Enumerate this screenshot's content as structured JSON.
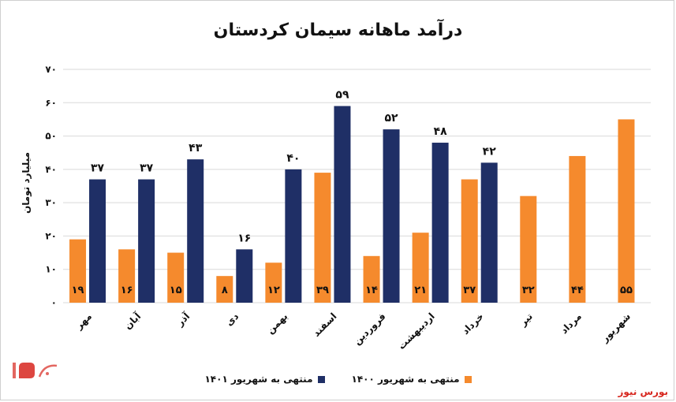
{
  "chart_data": {
    "type": "bar",
    "title": "درآمد ماهانه سیمان کردستان",
    "ylabel": "میلیارد تومان",
    "ylim": [
      0,
      70
    ],
    "yticks": [
      "۰",
      "۱۰",
      "۲۰",
      "۳۰",
      "۴۰",
      "۵۰",
      "۶۰",
      "۷۰"
    ],
    "categories": [
      "مهر",
      "آبان",
      "آذر",
      "دی",
      "بهمن",
      "اسفند",
      "فروردین",
      "اردیبهشت",
      "خرداد",
      "تیر",
      "مرداد",
      "شهریور"
    ],
    "series": [
      {
        "name": "منتهی به شهریور ۱۴۰۰",
        "color": "#f58a2d",
        "values": [
          19,
          16,
          15,
          8,
          12,
          39,
          14,
          21,
          37,
          32,
          44,
          55
        ],
        "labels": [
          "۱۹",
          "۱۶",
          "۱۵",
          "۸",
          "۱۲",
          "۳۹",
          "۱۴",
          "۲۱",
          "۳۷",
          "۳۲",
          "۴۴",
          "۵۵"
        ]
      },
      {
        "name": "منتهی به شهریور ۱۴۰۱",
        "color": "#1f2f66",
        "values": [
          37,
          37,
          43,
          16,
          40,
          59,
          52,
          48,
          42,
          null,
          null,
          null
        ],
        "labels": [
          "۳۷",
          "۳۷",
          "۴۳",
          "۱۶",
          "۴۰",
          "۵۹",
          "۵۲",
          "۴۸",
          "۴۲",
          "",
          "",
          ""
        ]
      }
    ],
    "legend_position": "bottom",
    "grid": true
  },
  "source": "بورس نیوز"
}
